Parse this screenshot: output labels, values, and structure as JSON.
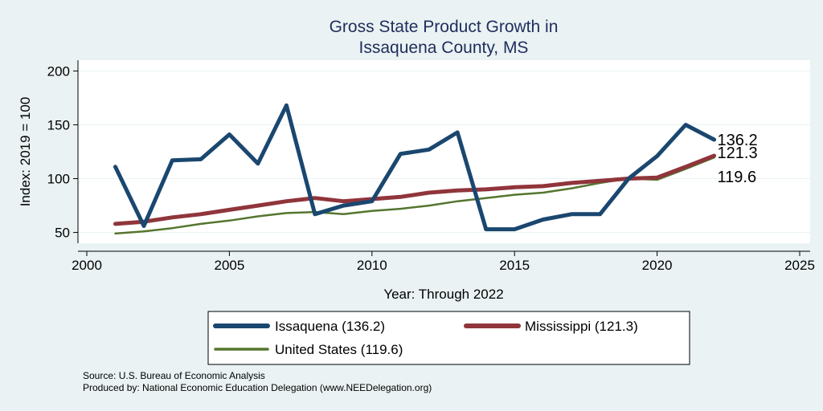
{
  "colors": {
    "background": "#eaf2f3",
    "plot_background": "#ffffff",
    "grid": "#eaf2f3",
    "title": "#1f2d5c"
  },
  "chart_data": {
    "type": "line",
    "title": [
      "Gross State Product Growth in",
      "Issaquena County, MS"
    ],
    "xlabel": "Year: Through 2022",
    "ylabel": "Index: 2019 = 100",
    "xlim": [
      2000,
      2025
    ],
    "ylim": [
      40,
      210
    ],
    "xticks": [
      2000,
      2005,
      2010,
      2015,
      2020,
      2025
    ],
    "yticks": [
      50,
      100,
      150,
      200
    ],
    "grid": true,
    "x": [
      2001,
      2002,
      2003,
      2004,
      2005,
      2006,
      2007,
      2008,
      2009,
      2010,
      2011,
      2012,
      2013,
      2014,
      2015,
      2016,
      2017,
      2018,
      2019,
      2020,
      2021,
      2022
    ],
    "series": [
      {
        "name": "Issaquena",
        "legend": "Issaquena  (136.2)",
        "color": "#1a476f",
        "width": 5,
        "end_label": "136.2",
        "values": [
          111,
          56,
          117,
          118,
          141,
          114,
          168,
          67,
          75,
          79,
          123,
          127,
          143,
          53,
          53,
          62,
          67,
          67,
          100,
          121,
          150,
          136.2
        ]
      },
      {
        "name": "Mississippi",
        "legend": "Mississippi (121.3)",
        "color": "#90353b",
        "width": 5,
        "end_label": "121.3",
        "values": [
          58,
          60,
          64,
          67,
          71,
          75,
          79,
          82,
          79,
          81,
          83,
          87,
          89,
          90,
          92,
          93,
          96,
          98,
          100,
          101,
          111,
          121.3
        ]
      },
      {
        "name": "United States",
        "legend": "United States (119.6)",
        "color": "#55752f",
        "width": 2.5,
        "end_label": "119.6",
        "values": [
          49,
          51,
          54,
          58,
          61,
          65,
          68,
          69,
          67,
          70,
          72,
          75,
          79,
          82,
          85,
          87,
          91,
          96,
          100,
          99,
          109,
          119.6
        ]
      }
    ],
    "legend_position": "bottom",
    "notes": [
      "Source: U.S. Bureau of Economic Analysis",
      "Produced by: National Economic Education Delegation (www.NEEDelegation.org)"
    ]
  }
}
